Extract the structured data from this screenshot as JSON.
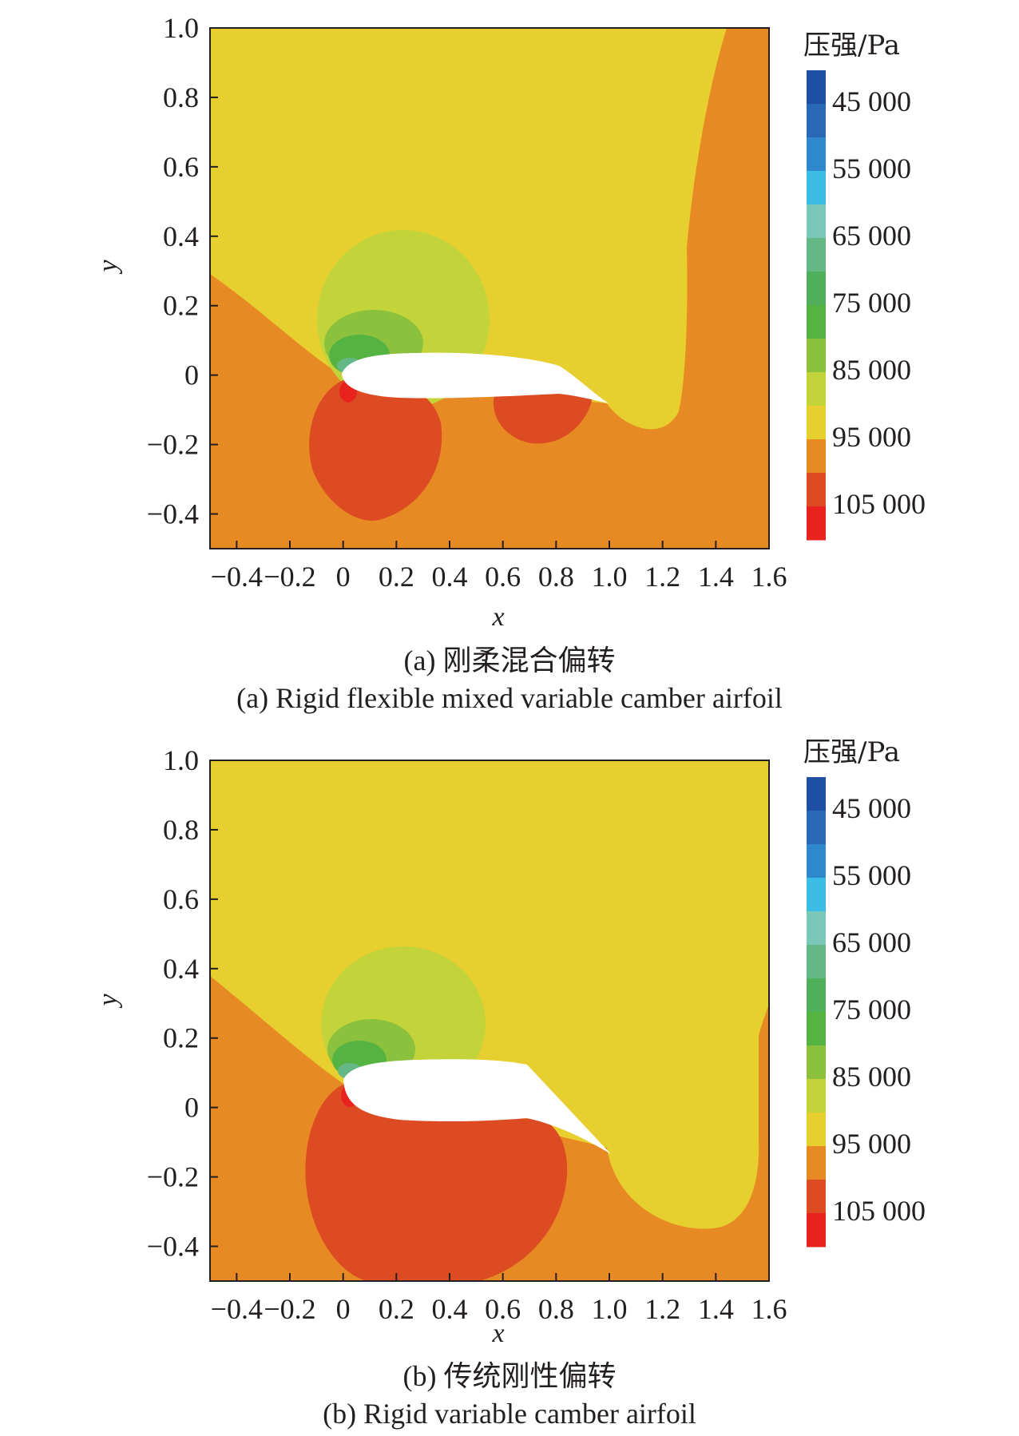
{
  "chart_data": [
    {
      "type": "heatmap",
      "title": "",
      "xlabel": "x",
      "ylabel": "y",
      "xlim": [
        -0.5,
        1.6
      ],
      "ylim": [
        -0.5,
        1.0
      ],
      "x_ticks": [
        "−0.4",
        "−0.2",
        "0",
        "0.2",
        "0.4",
        "0.6",
        "0.8",
        "1.0",
        "1.2",
        "1.4",
        "1.6"
      ],
      "y_ticks": [
        "1.0",
        "0.8",
        "0.6",
        "0.4",
        "0.2",
        "0",
        "−0.2",
        "−0.4"
      ],
      "colorbar": {
        "title": "压强/Pa",
        "labels": [
          "45 000",
          "55 000",
          "65 000",
          "75 000",
          "85 000",
          "95 000",
          "105 000"
        ],
        "colors": [
          "#1f4fa3",
          "#2868b5",
          "#2f88cc",
          "#3bbde6",
          "#79c8b8",
          "#64b886",
          "#4faf5a",
          "#55b341",
          "#8bc13c",
          "#c3d43a",
          "#e6cf2e",
          "#e88a24",
          "#dc4b22",
          "#e8231e"
        ]
      },
      "caption_cn": "(a) 刚柔混合偏转",
      "caption_en": "(a) Rigid flexible mixed variable camber airfoil"
    },
    {
      "type": "heatmap",
      "title": "",
      "xlabel": "x",
      "ylabel": "y",
      "xlim": [
        -0.5,
        1.6
      ],
      "ylim": [
        -0.5,
        1.0
      ],
      "x_ticks": [
        "−0.4",
        "−0.2",
        "0",
        "0.2",
        "0.4",
        "0.6",
        "0.8",
        "1.0",
        "1.2",
        "1.4",
        "1.6"
      ],
      "y_ticks": [
        "1.0",
        "0.8",
        "0.6",
        "0.4",
        "0.2",
        "0",
        "−0.2",
        "−0.4"
      ],
      "colorbar": {
        "title": "压强/Pa",
        "labels": [
          "45 000",
          "55 000",
          "65 000",
          "75 000",
          "85 000",
          "95 000",
          "105 000"
        ],
        "colors": [
          "#1f4fa3",
          "#2868b5",
          "#2f88cc",
          "#3bbde6",
          "#79c8b8",
          "#64b886",
          "#4faf5a",
          "#55b341",
          "#8bc13c",
          "#c3d43a",
          "#e6cf2e",
          "#e88a24",
          "#dc4b22",
          "#e8231e"
        ]
      },
      "caption_cn": "(b) 传统刚性偏转",
      "caption_en": "(b) Rigid variable camber airfoil"
    }
  ]
}
